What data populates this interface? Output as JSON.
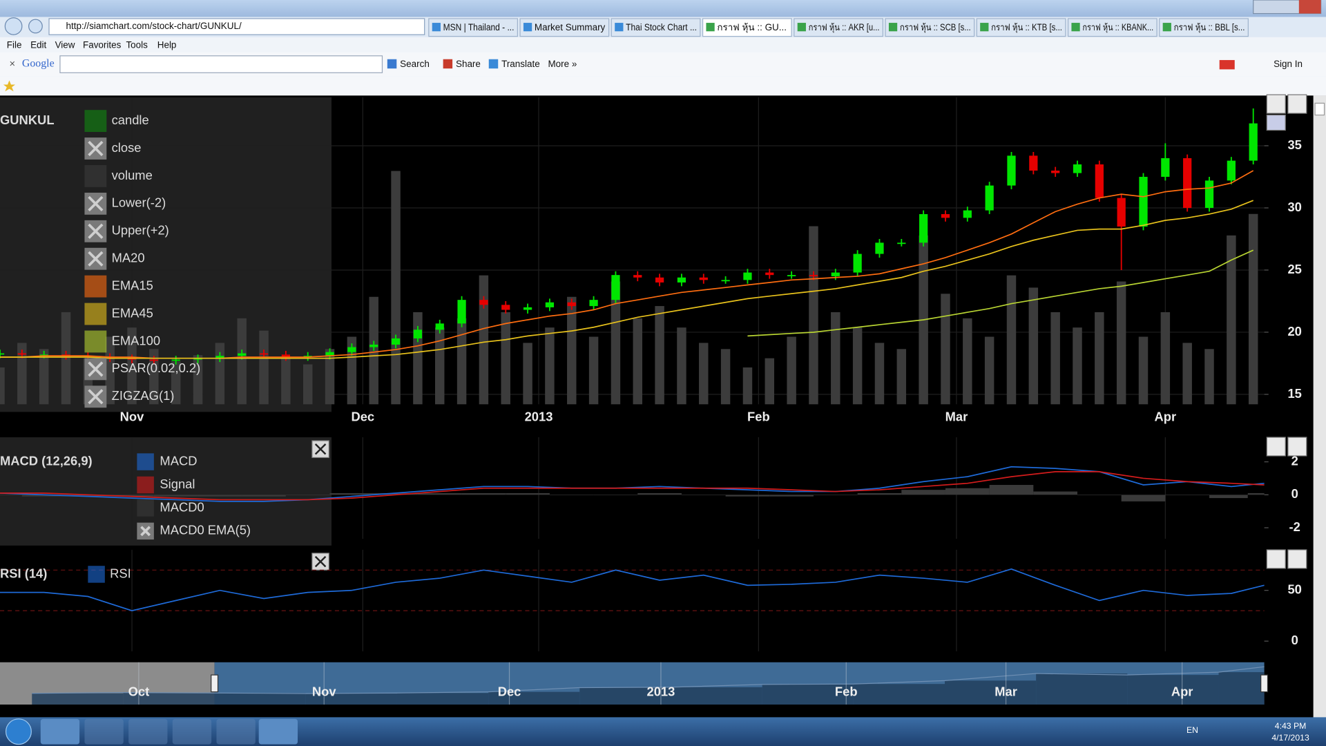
{
  "browser": {
    "url": "http://siamchart.com/stock-chart/GUNKUL/",
    "tabs": [
      "MSN | Thailand - ...",
      "Market Summary",
      "Thai Stock Chart ...",
      "กราฟ หุ้น :: GU...",
      "กราฟ หุ้น :: AKR [u...",
      "กราฟ หุ้น :: SCB [s...",
      "กราฟ หุ้น :: KTB [s...",
      "กราฟ หุ้น :: KBANK...",
      "กราฟ หุ้น :: BBL [s..."
    ],
    "active_tab": 3,
    "menu": [
      "File",
      "Edit",
      "View",
      "Favorites",
      "Tools",
      "Help"
    ],
    "toolbar": {
      "brand": "Google",
      "buttons": [
        "Search",
        "Share",
        "Translate",
        "More »"
      ],
      "sign_in": "Sign In"
    }
  },
  "chart_data": [
    {
      "type": "candlestick",
      "title": "GUNKUL",
      "x": [
        0,
        2,
        4,
        6,
        8,
        10,
        12,
        14,
        16,
        18,
        20,
        22,
        24,
        26,
        28,
        30,
        32,
        34,
        36,
        38,
        40,
        42,
        44,
        46,
        48,
        50,
        52,
        54,
        56,
        58,
        60,
        62,
        64,
        66,
        68,
        70,
        72,
        74,
        76,
        78,
        80,
        82,
        84,
        86,
        88,
        90,
        92,
        94,
        96,
        98,
        100,
        102,
        104,
        106,
        108,
        110,
        112,
        114
      ],
      "xlim": [
        0,
        115
      ],
      "xticks": [
        {
          "value": 12,
          "label": "Nov"
        },
        {
          "value": 33,
          "label": "Dec"
        },
        {
          "value": 49,
          "label": "2013"
        },
        {
          "value": 69,
          "label": "Feb"
        },
        {
          "value": 87,
          "label": "Mar"
        },
        {
          "value": 106,
          "label": "Apr"
        }
      ],
      "ylim": [
        14.2,
        38.9
      ],
      "yticks": [
        15,
        20,
        25,
        30,
        35
      ],
      "y2lim": [
        0,
        100
      ],
      "grid": true,
      "series": [
        {
          "name": "candle",
          "color": "#108a10",
          "up_color": "#00e600",
          "down_color": "#e60000",
          "open": [
            18.2,
            18.3,
            18.2,
            18.2,
            18.1,
            18.0,
            17.9,
            17.8,
            17.7,
            17.8,
            17.9,
            18.1,
            18.3,
            18.2,
            18.0,
            18.1,
            18.4,
            18.8,
            19.0,
            19.5,
            20.2,
            20.7,
            22.6,
            22.2,
            21.8,
            22.0,
            22.4,
            22.1,
            22.6,
            24.6,
            24.4,
            24.0,
            24.4,
            24.2,
            24.2,
            24.8,
            24.6,
            24.6,
            24.5,
            24.8,
            26.3,
            27.2,
            27.2,
            29.5,
            29.2,
            29.8,
            31.8,
            34.2,
            33.0,
            32.8,
            33.5,
            30.8,
            28.5,
            32.5,
            34.0,
            30.0,
            32.2,
            33.8
          ],
          "high": [
            18.6,
            18.6,
            18.5,
            18.5,
            18.4,
            18.3,
            18.2,
            18.1,
            18.1,
            18.2,
            18.4,
            18.6,
            18.6,
            18.5,
            18.4,
            18.7,
            19.1,
            19.3,
            19.8,
            20.5,
            21.0,
            22.9,
            22.9,
            22.5,
            22.3,
            22.7,
            22.7,
            22.9,
            24.9,
            24.9,
            24.7,
            24.7,
            24.7,
            24.5,
            25.1,
            25.1,
            24.9,
            24.9,
            25.1,
            26.6,
            27.5,
            27.5,
            29.8,
            29.8,
            30.1,
            32.1,
            34.5,
            34.5,
            33.3,
            33.8,
            33.8,
            31.1,
            32.8,
            35.2,
            34.3,
            32.5,
            34.1,
            38.0
          ],
          "low": [
            17.9,
            17.9,
            17.9,
            17.8,
            17.7,
            17.6,
            17.5,
            17.4,
            17.4,
            17.5,
            17.6,
            17.8,
            17.9,
            17.7,
            17.7,
            17.8,
            18.1,
            18.5,
            18.7,
            19.2,
            19.9,
            20.4,
            21.9,
            21.5,
            21.5,
            21.7,
            21.8,
            21.8,
            22.3,
            24.1,
            23.7,
            23.7,
            23.9,
            23.9,
            23.9,
            24.3,
            24.3,
            24.2,
            24.2,
            24.5,
            26.0,
            26.9,
            26.9,
            28.9,
            28.9,
            29.5,
            31.5,
            32.7,
            32.5,
            32.5,
            30.5,
            25.0,
            28.2,
            32.2,
            29.7,
            29.7,
            31.9,
            33.5
          ],
          "close": [
            18.3,
            18.2,
            18.2,
            18.1,
            18.0,
            17.9,
            17.8,
            17.7,
            17.8,
            17.9,
            18.1,
            18.3,
            18.2,
            18.0,
            18.1,
            18.4,
            18.8,
            19.0,
            19.5,
            20.2,
            20.7,
            22.6,
            22.2,
            21.8,
            22.0,
            22.4,
            22.1,
            22.6,
            24.6,
            24.4,
            24.0,
            24.4,
            24.2,
            24.2,
            24.8,
            24.6,
            24.6,
            24.5,
            24.8,
            26.3,
            27.2,
            27.2,
            29.5,
            29.2,
            29.8,
            31.8,
            34.2,
            33.0,
            32.8,
            33.5,
            30.8,
            28.5,
            32.5,
            34.0,
            30.0,
            32.2,
            33.8,
            36.8
          ]
        },
        {
          "name": "close",
          "enabled": false
        },
        {
          "name": "volume",
          "color": "#3c3c3c",
          "axis": "y2",
          "values": [
            12,
            20,
            18,
            30,
            15,
            22,
            25,
            18,
            14,
            16,
            20,
            28,
            24,
            15,
            13,
            18,
            22,
            35,
            76,
            30,
            25,
            28,
            42,
            30,
            20,
            25,
            35,
            22,
            40,
            28,
            32,
            25,
            20,
            18,
            12,
            15,
            22,
            58,
            30,
            25,
            20,
            18,
            55,
            36,
            28,
            22,
            42,
            38,
            30,
            25,
            30,
            40,
            22,
            30,
            20,
            18,
            55,
            62
          ]
        },
        {
          "name": "Lower(-2)",
          "enabled": false
        },
        {
          "name": "Upper(+2)",
          "enabled": false
        },
        {
          "name": "MA20",
          "enabled": false
        },
        {
          "name": "EMA15",
          "color": "#ff6d10",
          "values": [
            18.0,
            18.0,
            18.1,
            18.1,
            18.1,
            18.0,
            18.0,
            17.9,
            17.9,
            17.9,
            17.9,
            18.0,
            18.0,
            18.0,
            18.0,
            18.1,
            18.2,
            18.4,
            18.6,
            18.9,
            19.3,
            19.8,
            20.3,
            20.7,
            21.0,
            21.3,
            21.5,
            21.8,
            22.3,
            22.6,
            22.9,
            23.2,
            23.4,
            23.6,
            23.8,
            24.0,
            24.2,
            24.3,
            24.4,
            24.5,
            24.7,
            25.1,
            25.5,
            26.0,
            26.6,
            27.2,
            27.9,
            28.8,
            29.7,
            30.3,
            30.8,
            31.1,
            30.9,
            31.3,
            31.5,
            31.6,
            32.0,
            33.0
          ]
        },
        {
          "name": "EMA45",
          "color": "#e8c21c",
          "values": [
            18.0,
            18.0,
            18.0,
            18.0,
            18.0,
            17.9,
            17.9,
            17.9,
            17.9,
            17.9,
            17.9,
            17.9,
            17.9,
            17.9,
            17.9,
            17.9,
            18.0,
            18.1,
            18.2,
            18.4,
            18.6,
            18.9,
            19.2,
            19.4,
            19.7,
            19.9,
            20.1,
            20.4,
            20.8,
            21.2,
            21.5,
            21.8,
            22.1,
            22.4,
            22.7,
            22.9,
            23.1,
            23.3,
            23.5,
            23.8,
            24.1,
            24.4,
            24.9,
            25.3,
            25.8,
            26.3,
            26.9,
            27.4,
            27.8,
            28.2,
            28.3,
            28.3,
            28.6,
            29.0,
            29.2,
            29.5,
            29.9,
            30.6
          ]
        },
        {
          "name": "EMA100",
          "color": "#b8d432",
          "values": [
            null,
            null,
            null,
            null,
            null,
            null,
            null,
            null,
            null,
            null,
            null,
            null,
            null,
            null,
            null,
            null,
            null,
            null,
            null,
            null,
            null,
            null,
            null,
            null,
            null,
            null,
            null,
            null,
            null,
            null,
            null,
            null,
            null,
            null,
            19.7,
            19.8,
            19.9,
            20.0,
            20.2,
            20.4,
            20.6,
            20.8,
            21.0,
            21.3,
            21.6,
            21.9,
            22.3,
            22.6,
            22.9,
            23.2,
            23.5,
            23.7,
            24.0,
            24.3,
            24.6,
            24.9,
            25.8,
            26.6
          ]
        },
        {
          "name": "PSAR(0.02,0.2)",
          "enabled": false
        },
        {
          "name": "ZIGZAG(1)",
          "enabled": false
        }
      ]
    },
    {
      "type": "line",
      "title": "MACD (12,26,9)",
      "x": [
        0,
        4,
        8,
        12,
        16,
        20,
        24,
        28,
        32,
        36,
        40,
        44,
        48,
        52,
        56,
        60,
        64,
        68,
        72,
        76,
        80,
        84,
        88,
        92,
        96,
        100,
        104,
        108,
        112,
        115
      ],
      "xlim": [
        0,
        115
      ],
      "ylim": [
        -2.67,
        3.49
      ],
      "yticks": [
        2,
        0,
        -2
      ],
      "series": [
        {
          "name": "MACD",
          "color": "#1e6ad8",
          "values": [
            0.1,
            0.0,
            -0.1,
            -0.2,
            -0.3,
            -0.4,
            -0.4,
            -0.3,
            -0.1,
            0.1,
            0.3,
            0.5,
            0.5,
            0.4,
            0.4,
            0.5,
            0.4,
            0.3,
            0.2,
            0.2,
            0.4,
            0.8,
            1.1,
            1.7,
            1.6,
            1.4,
            0.6,
            0.8,
            0.5,
            0.7
          ]
        },
        {
          "name": "Signal",
          "color": "#d41c1c",
          "values": [
            0.1,
            0.1,
            0.0,
            -0.1,
            -0.2,
            -0.3,
            -0.3,
            -0.3,
            -0.2,
            0.0,
            0.2,
            0.4,
            0.4,
            0.4,
            0.4,
            0.4,
            0.4,
            0.4,
            0.3,
            0.2,
            0.3,
            0.5,
            0.7,
            1.1,
            1.4,
            1.4,
            1.0,
            0.8,
            0.7,
            0.6
          ]
        },
        {
          "name": "MACD0",
          "color": "#3a3a3a",
          "style": "bar",
          "values": [
            0,
            -0.1,
            -0.1,
            -0.1,
            -0.1,
            -0.1,
            -0.1,
            0,
            0.1,
            0.1,
            0.1,
            0.1,
            0.1,
            0,
            0,
            0.1,
            0,
            -0.1,
            -0.1,
            0,
            0.1,
            0.3,
            0.4,
            0.6,
            0.2,
            0,
            -0.4,
            0,
            -0.2,
            0.1
          ]
        },
        {
          "name": "MACD0 EMA(5)",
          "enabled": false
        }
      ]
    },
    {
      "type": "line",
      "title": "RSI (14)",
      "x": [
        0,
        4,
        8,
        12,
        16,
        20,
        24,
        28,
        32,
        36,
        40,
        44,
        48,
        52,
        56,
        60,
        64,
        68,
        72,
        76,
        80,
        84,
        88,
        92,
        96,
        100,
        104,
        108,
        112,
        115
      ],
      "xlim": [
        0,
        115
      ],
      "ylim": [
        -10,
        90
      ],
      "yticks": [
        50,
        0
      ],
      "levels": [
        70,
        30
      ],
      "series": [
        {
          "name": "RSI",
          "color": "#1e6ad8",
          "values": [
            48,
            48,
            44,
            30,
            40,
            50,
            42,
            48,
            50,
            58,
            62,
            70,
            64,
            58,
            70,
            60,
            65,
            55,
            56,
            58,
            65,
            62,
            58,
            71,
            55,
            40,
            50,
            45,
            47,
            55
          ]
        }
      ]
    },
    {
      "type": "area",
      "color": "#22405e",
      "x": [
        -20,
        -10,
        0,
        10,
        20,
        30,
        40,
        50,
        60,
        70,
        80,
        90,
        100,
        110,
        115
      ],
      "values": [
        18,
        18.5,
        18.2,
        17.8,
        18.2,
        19,
        22,
        22.3,
        24.3,
        24.6,
        27,
        32,
        31,
        33,
        36.8
      ],
      "xlim": [
        -23.5,
        115
      ],
      "ylim": [
        10,
        40
      ],
      "selection": [
        0,
        115
      ],
      "xticks": [
        {
          "value": -8.3,
          "label": "Oct"
        },
        {
          "value": 12,
          "label": "Nov"
        },
        {
          "value": 32.3,
          "label": "Dec"
        },
        {
          "value": 48.9,
          "label": "2013"
        },
        {
          "value": 69.2,
          "label": "Feb"
        },
        {
          "value": 86.7,
          "label": "Mar"
        },
        {
          "value": 106,
          "label": "Apr"
        }
      ]
    }
  ],
  "taskbar": {
    "language": "EN",
    "time": "4:43 PM",
    "date": "4/17/2013"
  }
}
